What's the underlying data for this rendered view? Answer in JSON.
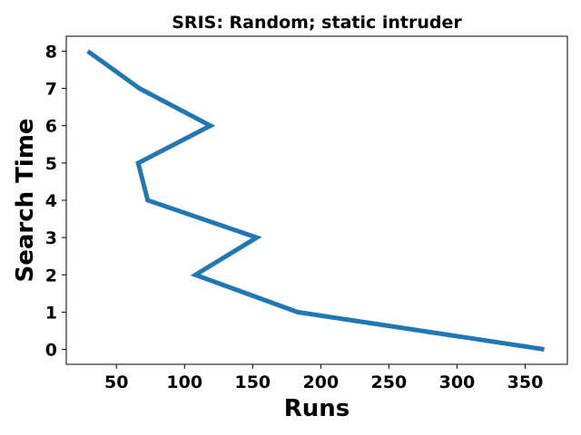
{
  "chart_data": {
    "type": "line",
    "title": "SRIS: Random; static intruder",
    "xlabel": "Runs",
    "ylabel": "Search Time",
    "xlim": [
      13.2,
      381.0
    ],
    "ylim": [
      -0.4,
      8.4
    ],
    "xticks": [
      50,
      100,
      150,
      200,
      250,
      300,
      350
    ],
    "yticks": [
      0,
      1,
      2,
      3,
      4,
      5,
      6,
      7,
      8
    ],
    "grid": false,
    "series": [
      {
        "name": "Search Time",
        "color": "#1f77b4",
        "x": [
          364,
          183,
          108,
          153,
          73,
          66,
          119,
          67,
          29
        ],
        "y": [
          0,
          1,
          2,
          3,
          4,
          5,
          6,
          7,
          8
        ]
      }
    ]
  }
}
